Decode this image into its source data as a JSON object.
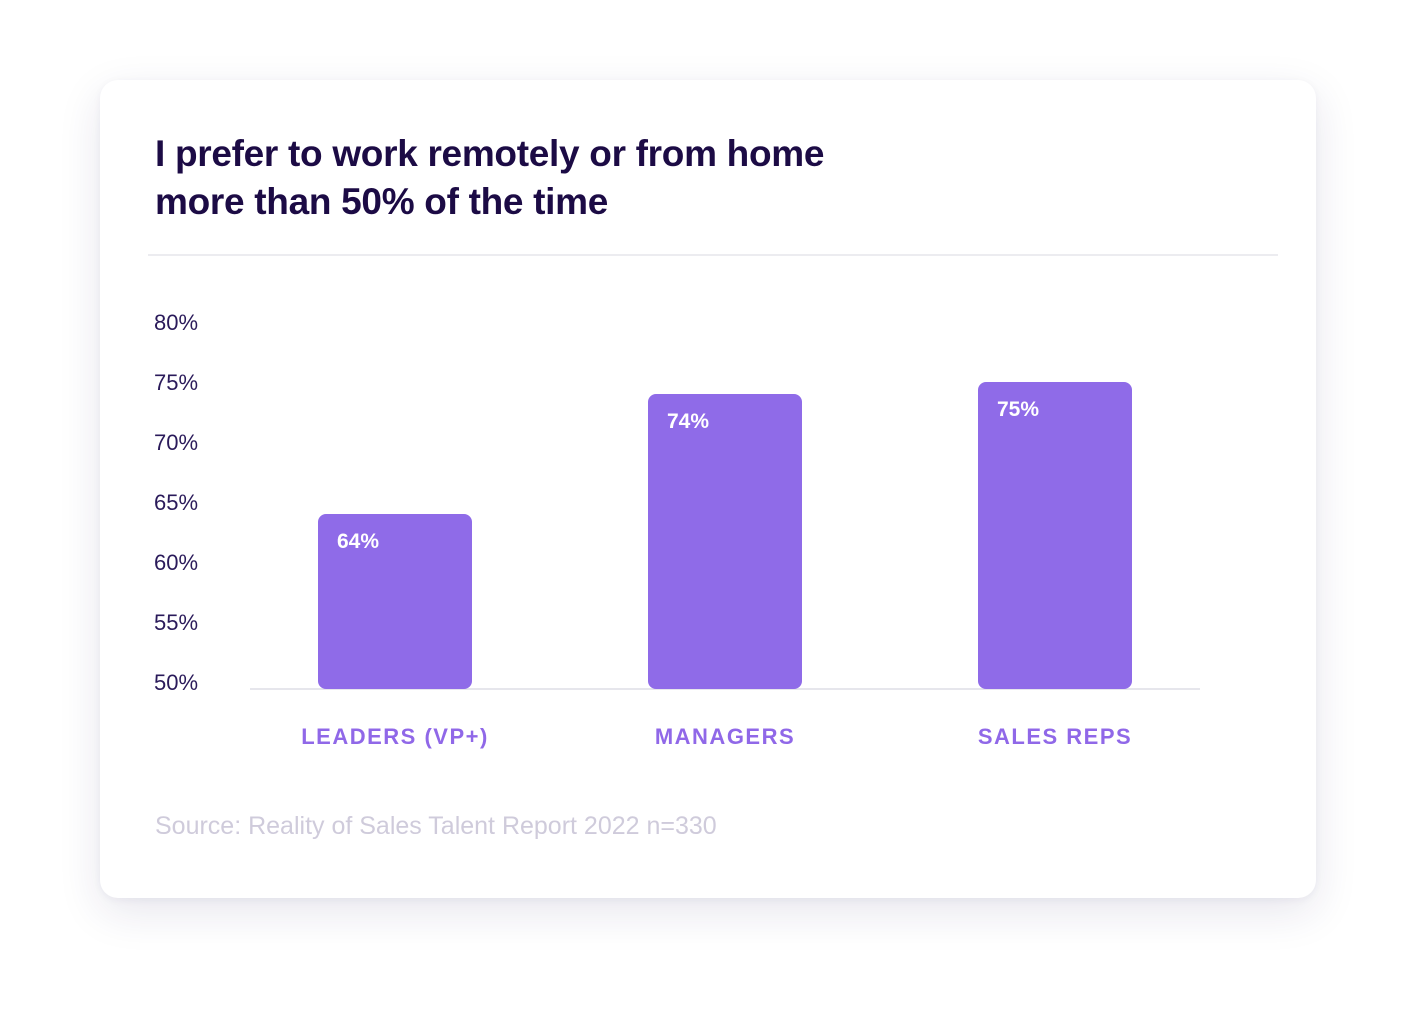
{
  "chart_data": {
    "type": "bar",
    "title": "I prefer to work remotely or from home more than 50% of the time",
    "title_lines": [
      "I prefer to work remotely or from home",
      "more than 50% of the time"
    ],
    "categories": [
      "LEADERS (VP+)",
      "MANAGERS",
      "SALES REPS"
    ],
    "values": [
      64,
      74,
      75
    ],
    "data_labels": [
      "64%",
      "74%",
      "75%"
    ],
    "ylim": [
      50,
      80
    ],
    "yticks": [
      80,
      75,
      70,
      65,
      60,
      55,
      50
    ],
    "ytick_labels": [
      "80%",
      "75%",
      "70%",
      "65%",
      "60%",
      "55%",
      "50%"
    ],
    "grid": false,
    "bar_color": "#8f6be8",
    "category_color": "#9068e8",
    "source": "Source: Reality of Sales Talent Report 2022 n=330"
  }
}
